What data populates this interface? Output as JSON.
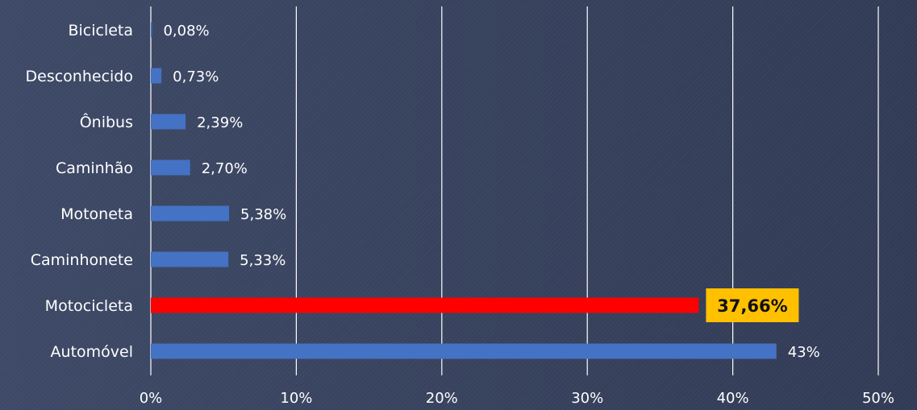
{
  "chart_data": {
    "type": "bar",
    "orientation": "horizontal",
    "categories": [
      "Bicicleta",
      "Desconhecido",
      "Ônibus",
      "Caminhão",
      "Motoneta",
      "Caminhonete",
      "Motocicleta",
      "Automóvel"
    ],
    "values": [
      0.08,
      0.73,
      2.39,
      2.7,
      5.38,
      5.33,
      37.66,
      43
    ],
    "value_labels": [
      "0,08%",
      "0,73%",
      "2,39%",
      "2,70%",
      "5,38%",
      "5,33%",
      "37,66%",
      "43%"
    ],
    "highlight_index": 6,
    "xlim": [
      0,
      50
    ],
    "xticks": [
      0,
      10,
      20,
      30,
      40,
      50
    ],
    "xtick_labels": [
      "0%",
      "10%",
      "20%",
      "30%",
      "40%",
      "50%"
    ],
    "grid": "vertical",
    "colors": {
      "bar": "#4472c4",
      "highlight_bar": "#ff0000",
      "highlight_label_bg": "#ffc000",
      "grid": "#ffffff",
      "text": "#ffffff"
    }
  }
}
